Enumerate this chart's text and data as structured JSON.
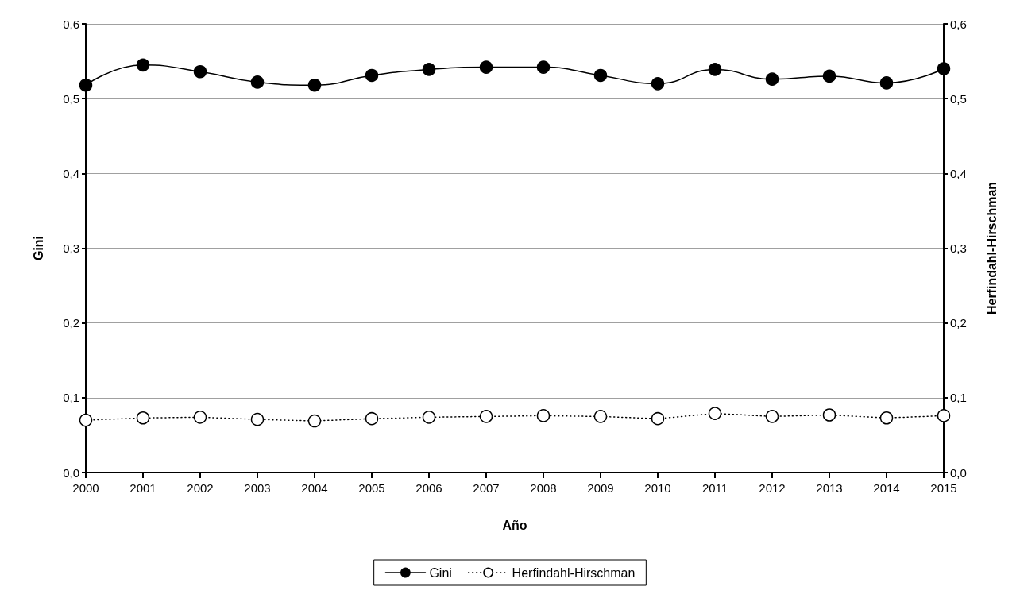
{
  "chart_data": {
    "type": "line",
    "xlabel": "Año",
    "ylabel": "Gini",
    "y2label": "Herfindahl-Hirschman",
    "categories": [
      "2000",
      "2001",
      "2002",
      "2003",
      "2004",
      "2005",
      "2006",
      "2007",
      "2008",
      "2009",
      "2010",
      "2011",
      "2012",
      "2013",
      "2014",
      "2015"
    ],
    "series": [
      {
        "name": "Gini",
        "color": "#000000",
        "marker": "circle",
        "line_style": "solid",
        "values": [
          0.518,
          0.545,
          0.536,
          0.522,
          0.518,
          0.531,
          0.539,
          0.542,
          0.542,
          0.531,
          0.52,
          0.539,
          0.526,
          0.53,
          0.521,
          0.54
        ]
      },
      {
        "name": "Herfindahl-Hirschman",
        "color": "#000000",
        "marker": "circle",
        "line_style": "dotted",
        "values": [
          0.07,
          0.073,
          0.074,
          0.071,
          0.069,
          0.072,
          0.074,
          0.075,
          0.076,
          0.075,
          0.072,
          0.079,
          0.075,
          0.077,
          0.073,
          0.076
        ]
      }
    ],
    "ylim": [
      0,
      0.6
    ],
    "yticks": [
      {
        "value": 0,
        "label": "0,0"
      },
      {
        "value": 0.1,
        "label": "0,1"
      },
      {
        "value": 0.2,
        "label": "0,2"
      },
      {
        "value": 0.3,
        "label": "0,3"
      },
      {
        "value": 0.4,
        "label": "0,4"
      },
      {
        "value": 0.5,
        "label": "0,5"
      },
      {
        "value": 0.6,
        "label": "0,6"
      }
    ],
    "y2lim": [
      0,
      0.6
    ],
    "y2ticks": [
      {
        "value": 0,
        "label": "0,0"
      },
      {
        "value": 0.1,
        "label": "0,1"
      },
      {
        "value": 0.2,
        "label": "0,2"
      },
      {
        "value": 0.3,
        "label": "0,3"
      },
      {
        "value": 0.4,
        "label": "0,4"
      },
      {
        "value": 0.5,
        "label": "0,5"
      },
      {
        "value": 0.6,
        "label": "0,6"
      }
    ],
    "grid": "y",
    "legend": "bottom"
  }
}
